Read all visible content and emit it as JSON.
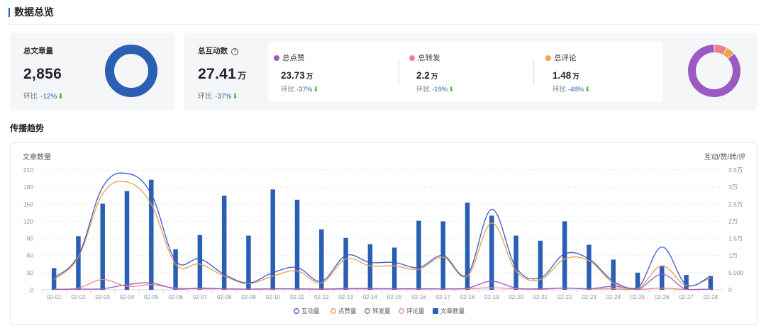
{
  "page_title": "数据总览",
  "articles_card": {
    "label": "总文章量",
    "value": "2,856",
    "mom_label": "环比",
    "mom_value": "-12%",
    "ring_color": "#2b5fb3"
  },
  "interact_card": {
    "label": "总互动数",
    "help_icon": "?",
    "value": "27.41",
    "unit": "万",
    "mom_label": "环比",
    "mom_value": "-37%",
    "items": [
      {
        "label": "总点赞",
        "value": "23.73",
        "unit": "万",
        "mom_label": "环比",
        "mom_value": "-37%",
        "color": "#9b59c4"
      },
      {
        "label": "总转发",
        "value": "2.2",
        "unit": "万",
        "mom_label": "环比",
        "mom_value": "-19%",
        "color": "#e8838b"
      },
      {
        "label": "总评论",
        "value": "1.48",
        "unit": "万",
        "mom_label": "环比",
        "mom_value": "-48%",
        "color": "#f0a54a"
      }
    ],
    "donut": {
      "values": [
        23.73,
        2.2,
        1.48
      ],
      "colors": [
        "#9b59c4",
        "#e8838b",
        "#f0a54a"
      ]
    }
  },
  "trend_section_title": "传播趋势",
  "chart_data": {
    "type": "bar",
    "ylabel_left": "文章数量",
    "ylabel_right": "互动/赞/转/评",
    "left_ticks": [
      "0",
      "30",
      "60",
      "90",
      "120",
      "150",
      "180",
      "210"
    ],
    "right_ticks": [
      "0",
      "5,000",
      "1万",
      "1.5万",
      "2万",
      "2.5万",
      "3万",
      "3.5万"
    ],
    "ylim_left": [
      0,
      210
    ],
    "ylim_right": [
      0,
      35000
    ],
    "categories": [
      "02-01",
      "02-02",
      "02-03",
      "02-04",
      "02-05",
      "02-06",
      "02-07",
      "02-08",
      "02-09",
      "02-10",
      "02-11",
      "02-12",
      "02-13",
      "02-14",
      "02-15",
      "02-16",
      "02-17",
      "02-18",
      "02-19",
      "02-20",
      "02-21",
      "02-22",
      "02-23",
      "02-24",
      "02-25",
      "02-26",
      "02-27",
      "02-28"
    ],
    "grid": true,
    "legend_position": "bottom-center",
    "series": [
      {
        "name": "互动量",
        "type": "line",
        "axis": "right",
        "color": "#3a55d4",
        "values": [
          3500,
          10000,
          30000,
          34000,
          28000,
          8500,
          9000,
          4500,
          2000,
          5000,
          6500,
          2500,
          10000,
          8000,
          8000,
          6500,
          10000,
          4500,
          23500,
          6500,
          3500,
          10500,
          9000,
          2500,
          500,
          12500,
          1500,
          4000
        ]
      },
      {
        "name": "点赞量",
        "type": "line",
        "axis": "right",
        "color": "#e8a040",
        "values": [
          3000,
          9500,
          28000,
          31500,
          25000,
          7500,
          7500,
          4000,
          1800,
          4000,
          5500,
          2000,
          9000,
          7000,
          7000,
          6000,
          9500,
          4000,
          19500,
          5500,
          3000,
          9000,
          8500,
          2000,
          300,
          7000,
          1200,
          3500
        ]
      },
      {
        "name": "转发量",
        "type": "line",
        "axis": "right",
        "color": "#9b59c4",
        "values": [
          100,
          200,
          300,
          1500,
          2000,
          300,
          500,
          300,
          200,
          300,
          300,
          200,
          300,
          300,
          300,
          300,
          300,
          500,
          2500,
          500,
          300,
          500,
          300,
          1000,
          100,
          4500,
          100,
          200
        ]
      },
      {
        "name": "评论量",
        "type": "line",
        "axis": "right",
        "color": "#e8838b",
        "values": [
          200,
          500,
          3000,
          1000,
          1500,
          500,
          300,
          300,
          200,
          300,
          300,
          200,
          400,
          400,
          300,
          300,
          300,
          300,
          600,
          300,
          200,
          500,
          300,
          300,
          100,
          500,
          100,
          200
        ]
      },
      {
        "name": "文章数量",
        "type": "bar",
        "axis": "left",
        "color": "#2b5fb3",
        "values": [
          38,
          94,
          151,
          173,
          193,
          71,
          96,
          165,
          95,
          176,
          158,
          106,
          91,
          80,
          74,
          121,
          120,
          153,
          130,
          95,
          86,
          120,
          79,
          53,
          30,
          42,
          26,
          24
        ]
      }
    ]
  }
}
